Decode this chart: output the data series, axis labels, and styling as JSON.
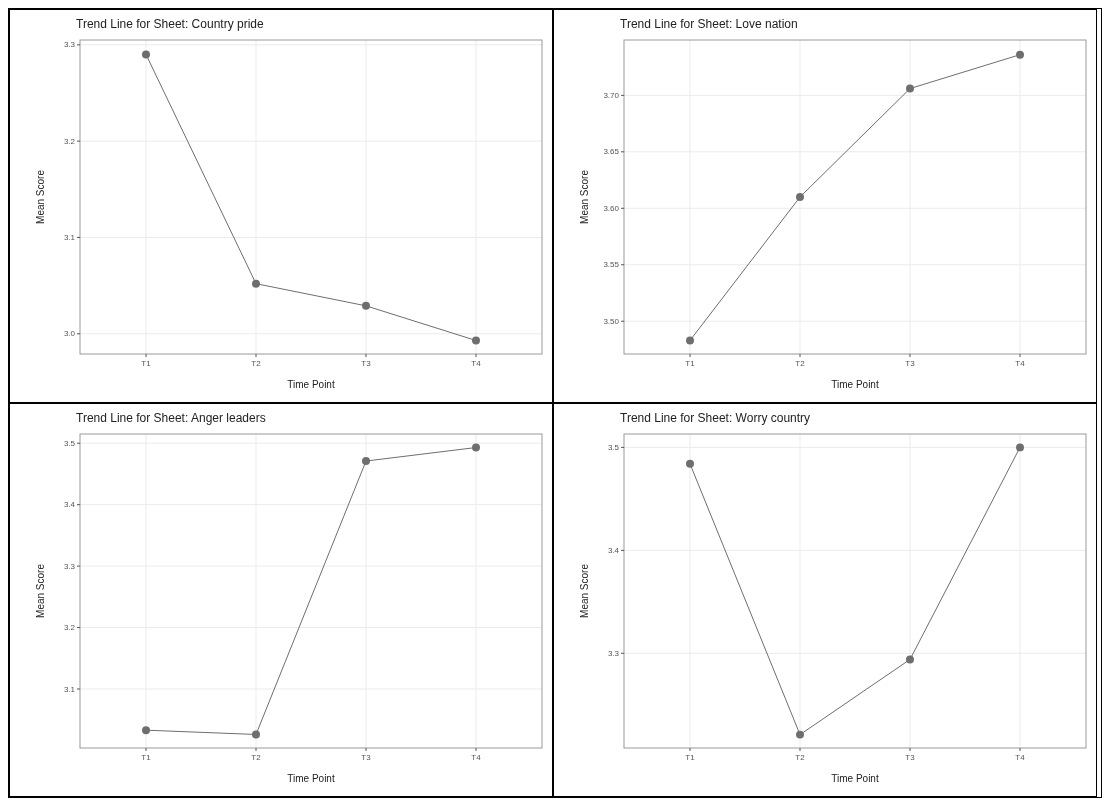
{
  "chart_data": [
    {
      "type": "line",
      "title": "Trend Line for Sheet: Country pride",
      "xlabel": "Time Point",
      "ylabel": "Mean Score",
      "categories": [
        "T1",
        "T2",
        "T3",
        "T4"
      ],
      "series": [
        {
          "color": "#6e6e6e",
          "values": [
            3.29,
            3.052,
            3.029,
            2.993
          ]
        }
      ],
      "ylim": [
        2.979,
        3.305
      ],
      "yticks": [
        {
          "value": 3.0,
          "label": "3.0"
        },
        3.1,
        3.2,
        3.3
      ],
      "grid": true,
      "marker": "circle",
      "line_style": "solid"
    },
    {
      "type": "line",
      "title": "Trend Line for Sheet: Love nation",
      "xlabel": "Time Point",
      "ylabel": "Mean Score",
      "categories": [
        "T1",
        "T2",
        "T3",
        "T4"
      ],
      "series": [
        {
          "color": "#6e6e6e",
          "values": [
            3.483,
            3.61,
            3.706,
            3.736
          ]
        }
      ],
      "ylim": [
        3.471,
        3.749
      ],
      "yticks": [
        {
          "value": 3.5,
          "label": "3.50"
        },
        {
          "value": 3.55,
          "label": "3.55"
        },
        {
          "value": 3.6,
          "label": "3.60"
        },
        {
          "value": 3.65,
          "label": "3.65"
        },
        {
          "value": 3.7,
          "label": "3.70"
        }
      ],
      "grid": true,
      "marker": "circle",
      "line_style": "solid"
    },
    {
      "type": "line",
      "title": "Trend Line for Sheet: Anger leaders",
      "xlabel": "Time Point",
      "ylabel": "Mean Score",
      "categories": [
        "T1",
        "T2",
        "T3",
        "T4"
      ],
      "series": [
        {
          "color": "#6e6e6e",
          "values": [
            3.033,
            3.026,
            3.471,
            3.493
          ]
        }
      ],
      "ylim": [
        3.004,
        3.515
      ],
      "yticks": [
        3.1,
        3.2,
        3.3,
        3.4,
        3.5
      ],
      "grid": true,
      "marker": "circle",
      "line_style": "solid"
    },
    {
      "type": "line",
      "title": "Trend Line for Sheet: Worry country",
      "xlabel": "Time Point",
      "ylabel": "Mean Score",
      "categories": [
        "T1",
        "T2",
        "T3",
        "T4"
      ],
      "series": [
        {
          "color": "#6e6e6e",
          "values": [
            3.484,
            3.221,
            3.294,
            3.5
          ]
        }
      ],
      "ylim": [
        3.208,
        3.513
      ],
      "yticks": [
        3.3,
        3.4,
        3.5
      ],
      "grid": true,
      "marker": "circle",
      "line_style": "solid"
    }
  ]
}
